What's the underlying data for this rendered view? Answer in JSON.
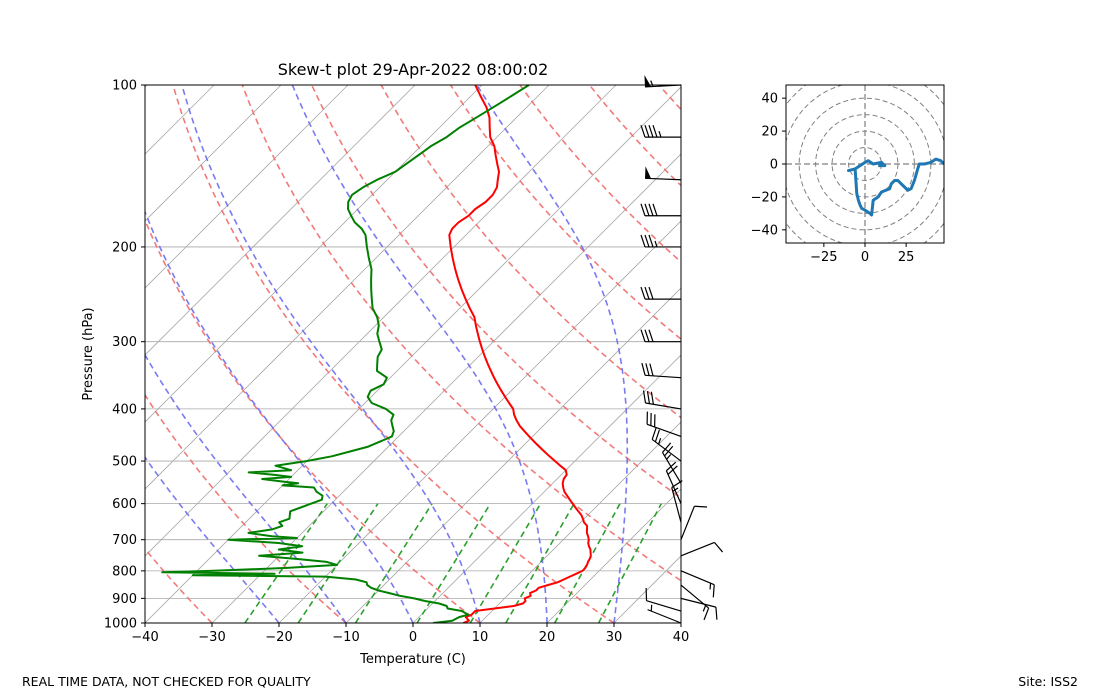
{
  "footer": {
    "left_note": "REAL TIME DATA, NOT CHECKED FOR QUALITY",
    "right_note": "Site: ISS2"
  },
  "colors": {
    "temperature": "#ff0000",
    "dewpoint": "#008000",
    "dry_adiabat": "#f06b6b",
    "moist_adiabat": "#6b6bf0",
    "mixing_ratio": "#2ca02c",
    "isotherm": "#a9a9a9",
    "hodograph": "#1f77b4",
    "hodo_rings": "#808080"
  },
  "chart_data": [
    {
      "type": "line",
      "title": "Skew-t plot 29-Apr-2022 08:00:02",
      "xlabel": "Temperature (C)",
      "ylabel": "Pressure (hPa)",
      "xlim": [
        -40,
        40
      ],
      "ylim": [
        1000,
        100
      ],
      "y_scale": "log",
      "x_ticks": [
        "−40",
        "−30",
        "−20",
        "−10",
        "0",
        "10",
        "20",
        "30",
        "40"
      ],
      "x_tick_values": [
        -40,
        -30,
        -20,
        -10,
        0,
        10,
        20,
        30,
        40
      ],
      "y_ticks": [
        "100",
        "200",
        "300",
        "400",
        "500",
        "600",
        "700",
        "800",
        "900",
        "1000"
      ],
      "y_tick_values": [
        100,
        200,
        300,
        400,
        500,
        600,
        700,
        800,
        900,
        1000
      ],
      "grid": true,
      "series": [
        {
          "key": "temperature",
          "p": [
            1000,
            990,
            975,
            965,
            950,
            940,
            930,
            920,
            910,
            900,
            890,
            880,
            870,
            860,
            850,
            840,
            830,
            820,
            810,
            800,
            790,
            780,
            770,
            760,
            750,
            740,
            730,
            720,
            710,
            700,
            690,
            680,
            670,
            660,
            650,
            640,
            630,
            620,
            610,
            600,
            590,
            580,
            570,
            560,
            550,
            540,
            530,
            520,
            510,
            500,
            490,
            480,
            470,
            460,
            450,
            440,
            430,
            420,
            410,
            400,
            390,
            380,
            370,
            360,
            350,
            340,
            330,
            320,
            310,
            300,
            290,
            280,
            270,
            260,
            250,
            240,
            230,
            220,
            210,
            200,
            190,
            185,
            180,
            175,
            170,
            165,
            160,
            155,
            150,
            145,
            140,
            135,
            130,
            125,
            120,
            115,
            110,
            105,
            100
          ],
          "t": [
            7.5,
            8.0,
            7.0,
            7.5,
            7.5,
            10.0,
            12.5,
            13.5,
            13.5,
            13.0,
            13.5,
            13.0,
            13.5,
            13.5,
            14.5,
            15.5,
            16.0,
            16.5,
            17.0,
            17.5,
            17.5,
            17.3,
            17.0,
            16.8,
            16.5,
            16.0,
            15.5,
            14.8,
            14.2,
            13.8,
            13.2,
            12.5,
            12.0,
            11.5,
            10.5,
            9.8,
            9.0,
            8.0,
            7.0,
            6.0,
            5.0,
            4.0,
            3.0,
            2.2,
            1.5,
            1.0,
            0.8,
            0.0,
            -1.5,
            -3.0,
            -4.5,
            -6.0,
            -7.5,
            -9.0,
            -10.5,
            -12.0,
            -13.5,
            -14.8,
            -16.0,
            -17.0,
            -18.5,
            -20.0,
            -21.5,
            -23.0,
            -24.5,
            -26.0,
            -27.5,
            -29.0,
            -30.5,
            -32.0,
            -33.5,
            -35.0,
            -36.5,
            -38.5,
            -40.5,
            -42.5,
            -44.5,
            -46.5,
            -48.5,
            -50.5,
            -52.5,
            -53.0,
            -53.0,
            -52.5,
            -52.5,
            -52.0,
            -52.0,
            -52.5,
            -53.5,
            -54.5,
            -56.0,
            -57.5,
            -59.0,
            -61.0,
            -62.5,
            -64.0,
            -66.0,
            -68.5,
            -71.0
          ]
        },
        {
          "key": "dewpoint",
          "p": [
            1000,
            990,
            975,
            965,
            950,
            940,
            930,
            920,
            910,
            900,
            890,
            880,
            870,
            860,
            850,
            840,
            830,
            820,
            815,
            810,
            805,
            800,
            790,
            780,
            770,
            760,
            750,
            740,
            730,
            720,
            710,
            700,
            695,
            690,
            680,
            670,
            660,
            650,
            640,
            630,
            620,
            610,
            600,
            590,
            580,
            570,
            560,
            555,
            550,
            545,
            540,
            535,
            530,
            525,
            520,
            510,
            500,
            490,
            480,
            470,
            460,
            450,
            440,
            430,
            420,
            410,
            400,
            390,
            380,
            370,
            360,
            350,
            340,
            330,
            320,
            310,
            300,
            290,
            280,
            270,
            260,
            250,
            240,
            230,
            220,
            210,
            200,
            190,
            185,
            180,
            175,
            170,
            165,
            160,
            155,
            150,
            145,
            140,
            135,
            130,
            125,
            120,
            115,
            110,
            105,
            100
          ],
          "t": [
            3.0,
            5.5,
            6.0,
            7.0,
            5.5,
            3.0,
            2.5,
            1.0,
            -1.5,
            -3.5,
            -6.0,
            -8.0,
            -10.0,
            -11.5,
            -12.5,
            -13.0,
            -15.0,
            -20.0,
            -40.0,
            -28.0,
            -45.0,
            -38.0,
            -27.0,
            -20.0,
            -22.0,
            -27.0,
            -33.0,
            -27.0,
            -31.0,
            -28.0,
            -32.0,
            -40.0,
            -30.0,
            -34.0,
            -38.0,
            -35.0,
            -34.0,
            -35.0,
            -34.0,
            -34.5,
            -35.0,
            -34.0,
            -33.0,
            -32.0,
            -32.5,
            -34.0,
            -35.0,
            -40.0,
            -38.0,
            -41.0,
            -44.0,
            -40.0,
            -43.0,
            -47.0,
            -41.0,
            -44.0,
            -40.0,
            -37.0,
            -35.0,
            -33.0,
            -32.0,
            -31.0,
            -31.5,
            -32.5,
            -33.5,
            -34.0,
            -36.0,
            -39.0,
            -40.5,
            -41.0,
            -40.0,
            -40.5,
            -43.0,
            -44.0,
            -45.0,
            -45.5,
            -47.0,
            -48.5,
            -49.5,
            -51.0,
            -53.0,
            -54.5,
            -56.0,
            -57.5,
            -59.0,
            -61.0,
            -63.0,
            -65.0,
            -66.5,
            -68.5,
            -70.0,
            -71.5,
            -72.5,
            -73.0,
            -72.5,
            -71.5,
            -70.0,
            -69.5,
            -69.0,
            -68.5,
            -67.5,
            -67.0,
            -66.0,
            -65.0,
            -64.0,
            -63.0
          ]
        }
      ],
      "wind_barbs": {
        "units": "knots",
        "p": [
          1000,
          950,
          900,
          850,
          800,
          750,
          700,
          650,
          600,
          550,
          500,
          450,
          400,
          350,
          300,
          250,
          200,
          175,
          150,
          125,
          100
        ],
        "u": [
          -5,
          -10,
          8,
          12,
          12,
          10,
          4,
          -4,
          -8,
          -12,
          -20,
          -28,
          -30,
          -30,
          -32,
          -32,
          -35,
          -40,
          -50,
          -45,
          -55
        ],
        "v": [
          2,
          3,
          -2,
          -10,
          -5,
          4,
          10,
          15,
          18,
          20,
          15,
          10,
          5,
          2,
          0,
          0,
          0,
          0,
          2,
          0,
          -3
        ]
      }
    },
    {
      "type": "line",
      "title": "",
      "xlabel": "",
      "ylabel": "",
      "xlim": [
        -48,
        48
      ],
      "ylim": [
        -48,
        48
      ],
      "x_ticks": [
        "−25",
        "0",
        "25"
      ],
      "x_tick_values": [
        -25,
        0,
        25
      ],
      "y_ticks": [
        "−40",
        "−20",
        "0",
        "20",
        "40"
      ],
      "y_tick_values": [
        -40,
        -20,
        0,
        20,
        40
      ],
      "ring_radii": [
        10,
        20,
        30,
        40,
        50,
        60
      ],
      "grid": true,
      "series": [
        {
          "key": "hodograph",
          "u": [
            8,
            12,
            10,
            5,
            2,
            0,
            -3,
            -6,
            -10,
            -6,
            -5,
            -4,
            -3,
            -2,
            0,
            3,
            4,
            5,
            8,
            10,
            15,
            16,
            17,
            18,
            20,
            22,
            24,
            26,
            28,
            30,
            32,
            33,
            36,
            40,
            43,
            46,
            48
          ],
          "v": [
            -1,
            -1,
            1,
            0,
            2,
            1,
            -1,
            -3,
            -4,
            -3,
            -18,
            -22,
            -25,
            -27,
            -28,
            -30,
            -31,
            -22,
            -20,
            -17,
            -15,
            -12,
            -11,
            -10,
            -10,
            -12,
            -14,
            -16,
            -15,
            -10,
            -3,
            0,
            0,
            1,
            3,
            2,
            0
          ]
        }
      ]
    }
  ]
}
